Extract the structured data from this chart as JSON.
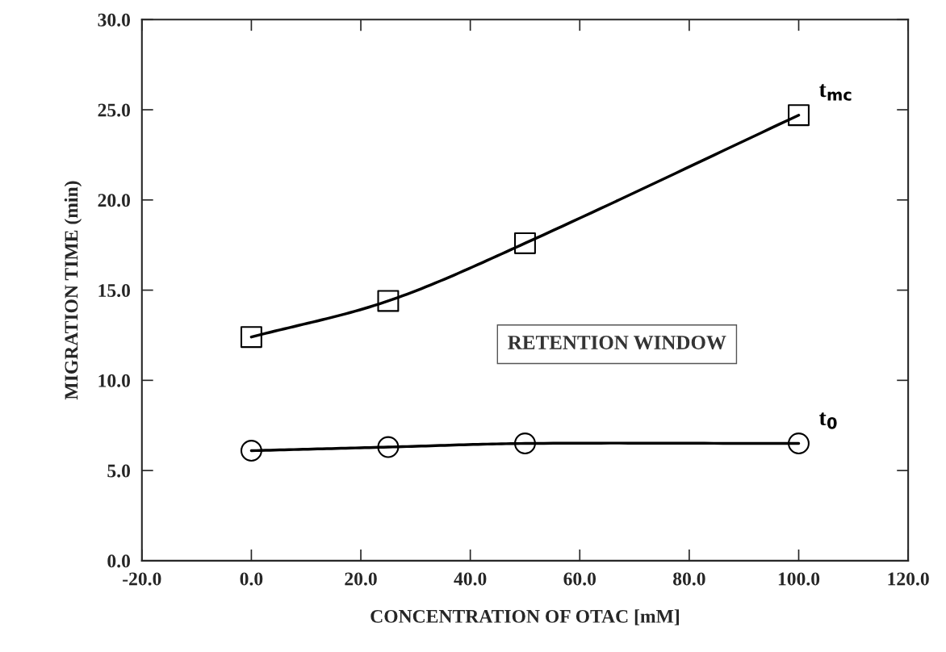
{
  "chart_data": {
    "type": "line",
    "xlabel": "CONCENTRATION OF OTAC [mM]",
    "ylabel": "MIGRATION TIME (min)",
    "x": [
      0,
      25,
      50,
      100
    ],
    "series": [
      {
        "name": "t$_{mc}$",
        "color": "#000000",
        "marker": "square",
        "values": [
          12.4,
          14.4,
          17.6,
          24.7
        ]
      },
      {
        "name": "t$_{0}$",
        "color": "#000000",
        "marker": "circle",
        "values": [
          6.1,
          6.3,
          6.5,
          6.5
        ]
      }
    ],
    "xlim": [
      -20,
      120
    ],
    "xticks": [
      {
        "value": -20,
        "label": "-20.0"
      },
      {
        "value": 0,
        "label": "0.0"
      },
      {
        "value": 20,
        "label": "20.0"
      },
      {
        "value": 40,
        "label": "40.0"
      },
      {
        "value": 60,
        "label": "60.0"
      },
      {
        "value": 80,
        "label": "80.0"
      },
      {
        "value": 100,
        "label": "100.0"
      },
      {
        "value": 120,
        "label": "120.0"
      }
    ],
    "ylim": [
      0,
      30
    ],
    "yticks": [
      {
        "value": 0,
        "label": "0.0"
      },
      {
        "value": 5,
        "label": "5.0"
      },
      {
        "value": 10,
        "label": "10.0"
      },
      {
        "value": 15,
        "label": "15.0"
      },
      {
        "value": 20,
        "label": "20.0"
      },
      {
        "value": 25,
        "label": "25.0"
      },
      {
        "value": 30,
        "label": "30.0"
      }
    ],
    "annotations": [
      "RETENTION WINDOW"
    ],
    "grid": false,
    "legend": false
  }
}
